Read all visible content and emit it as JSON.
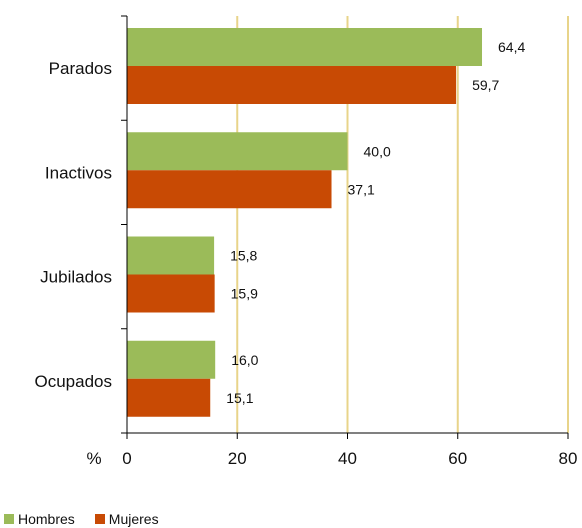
{
  "chart_data": {
    "type": "bar",
    "orientation": "horizontal",
    "categories": [
      "Parados",
      "Inactivos",
      "Jubilados",
      "Ocupados"
    ],
    "series": [
      {
        "name": "Hombres",
        "color": "#9bbb59",
        "values": [
          64.4,
          40.0,
          15.8,
          16.0
        ],
        "labels": [
          "64,4",
          "40,0",
          "15,8",
          "16,0"
        ]
      },
      {
        "name": "Mujeres",
        "color": "#c84a04",
        "values": [
          59.7,
          37.1,
          15.9,
          15.1
        ],
        "labels": [
          "59,7",
          "37,1",
          "15,9",
          "15,1"
        ]
      }
    ],
    "xlabel": "%",
    "xlim": [
      0,
      80
    ],
    "xticks": [
      0,
      20,
      40,
      60,
      80
    ],
    "gridlines": "vertical",
    "gridline_color": "#e8d48a",
    "legend_position": "bottom-left"
  }
}
